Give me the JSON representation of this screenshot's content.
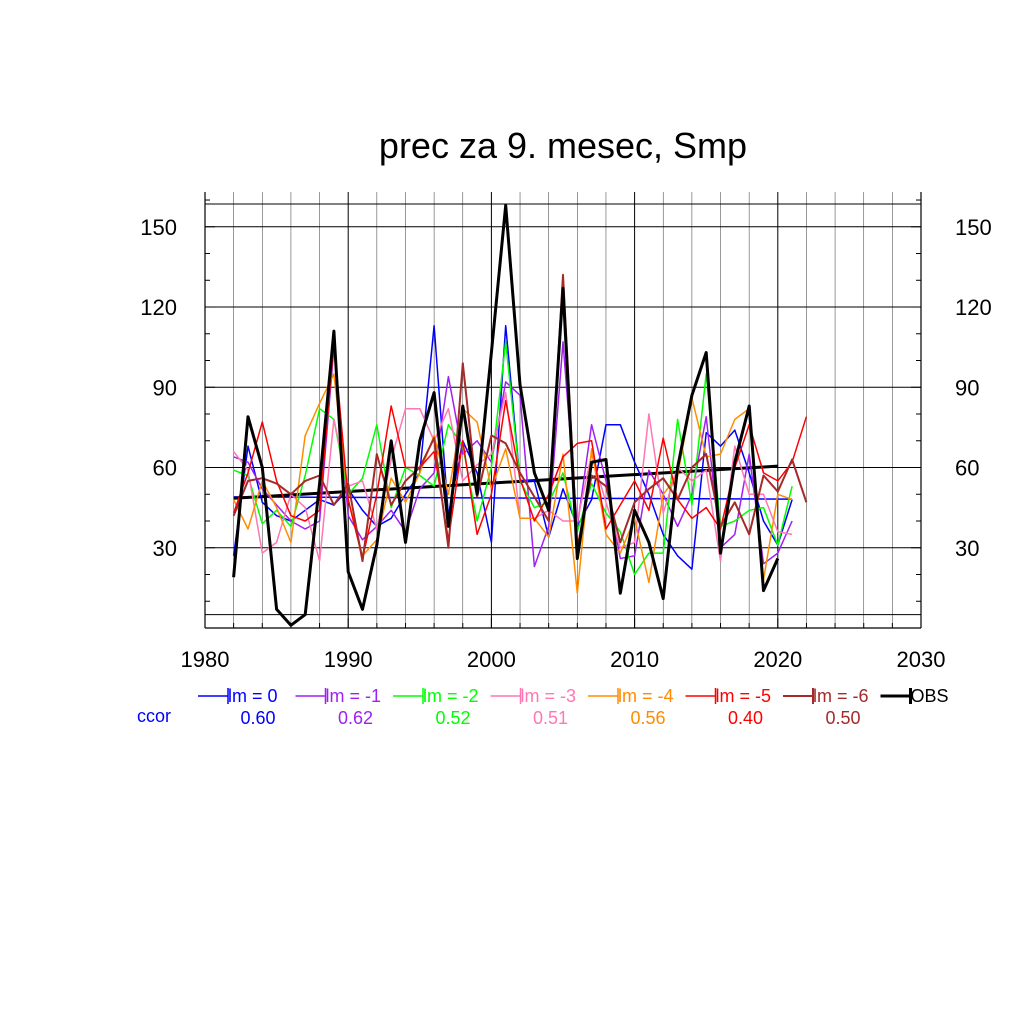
{
  "chart_data": {
    "type": "line",
    "title": "prec za 9. mesec, Smp",
    "xlabel": "",
    "ylabel": "",
    "xlim": [
      1980,
      2030
    ],
    "ylim": [
      0,
      163
    ],
    "x_ticks": [
      1980,
      1990,
      2000,
      2010,
      2020,
      2030
    ],
    "x_tick_labels": [
      "1980",
      "1990",
      "2000",
      "2010",
      "2020",
      "2030"
    ],
    "y_ticks": [
      30,
      60,
      90,
      120,
      150
    ],
    "y_tick_labels": [
      "30",
      "60",
      "90",
      "120",
      "150"
    ],
    "grid": true,
    "legend_position": "bottom",
    "ccor_label": "ccor",
    "years": [
      1982,
      1983,
      1984,
      1985,
      1986,
      1987,
      1988,
      1989,
      1990,
      1991,
      1992,
      1993,
      1994,
      1995,
      1996,
      1997,
      1998,
      1999,
      2000,
      2001,
      2002,
      2003,
      2004,
      2005,
      2006,
      2007,
      2008,
      2009,
      2010,
      2011,
      2012,
      2013,
      2014,
      2015,
      2016,
      2017,
      2018,
      2019,
      2020,
      2021,
      2022
    ],
    "series": [
      {
        "name": "lm = 0",
        "ccor": "0.60",
        "color": "#0000ff",
        "width": 1.5,
        "values": [
          27,
          68,
          47,
          42,
          40,
          44,
          48,
          46,
          52,
          44,
          38,
          41,
          50,
          58,
          113,
          42,
          70,
          58,
          32,
          113,
          55,
          55,
          34,
          52,
          38,
          48,
          76,
          76,
          62,
          50,
          35,
          27,
          22,
          73,
          68,
          74,
          58,
          40,
          31,
          48,
          null
        ]
      },
      {
        "name": "lm = -1",
        "ccor": "0.62",
        "color": "#a020f0",
        "width": 1.5,
        "values": [
          64,
          62,
          52,
          46,
          40,
          37,
          40,
          105,
          42,
          33,
          38,
          44,
          36,
          52,
          58,
          94,
          65,
          70,
          62,
          92,
          87,
          23,
          38,
          107,
          38,
          76,
          55,
          26,
          27,
          59,
          50,
          38,
          50,
          79,
          30,
          35,
          65,
          24,
          28,
          40,
          null
        ]
      },
      {
        "name": "lm = -2",
        "ccor": "0.52",
        "color": "#00ff00",
        "width": 1.5,
        "values": [
          59,
          57,
          39,
          44,
          38,
          57,
          82,
          78,
          50,
          56,
          76,
          45,
          60,
          57,
          53,
          76,
          68,
          40,
          60,
          107,
          55,
          45,
          47,
          58,
          36,
          54,
          43,
          36,
          20,
          28,
          28,
          78,
          46,
          95,
          38,
          40,
          44,
          45,
          31,
          53,
          null
        ]
      },
      {
        "name": "lm = -3",
        "ccor": "0.51",
        "color": "#ff77b4",
        "width": 1.5,
        "values": [
          66,
          59,
          28,
          32,
          50,
          45,
          25,
          78,
          53,
          55,
          37,
          63,
          82,
          82,
          70,
          82,
          55,
          61,
          65,
          88,
          41,
          41,
          44,
          40,
          40,
          65,
          47,
          30,
          32,
          80,
          43,
          60,
          55,
          59,
          25,
          68,
          50,
          50,
          36,
          35,
          null
        ]
      },
      {
        "name": "lm = -4",
        "ccor": "0.56",
        "color": "#ff8c00",
        "width": 1.5,
        "values": [
          48,
          37,
          55,
          45,
          32,
          72,
          84,
          95,
          48,
          27,
          33,
          56,
          47,
          58,
          72,
          50,
          82,
          77,
          52,
          67,
          41,
          41,
          34,
          65,
          13,
          67,
          35,
          28,
          41,
          17,
          50,
          57,
          86,
          64,
          65,
          78,
          82,
          18,
          50,
          48,
          null
        ]
      },
      {
        "name": "lm = -5",
        "ccor": "0.40",
        "color": "#ff0000",
        "width": 1.5,
        "values": [
          43,
          58,
          77,
          55,
          42,
          40,
          44,
          107,
          48,
          26,
          50,
          83,
          60,
          60,
          66,
          33,
          70,
          35,
          50,
          85,
          56,
          40,
          50,
          64,
          69,
          70,
          37,
          46,
          55,
          44,
          71,
          48,
          41,
          45,
          37,
          60,
          76,
          58,
          55,
          62,
          79
        ]
      },
      {
        "name": "lm = -6",
        "ccor": "0.50",
        "color": "#a52a2a",
        "width": 2,
        "values": [
          42,
          55,
          56,
          54,
          50,
          55,
          57,
          46,
          54,
          25,
          65,
          46,
          55,
          60,
          71,
          30,
          99,
          49,
          72,
          69,
          58,
          49,
          40,
          132,
          30,
          57,
          53,
          32,
          47,
          52,
          56,
          48,
          60,
          65,
          38,
          47,
          35,
          57,
          51,
          63,
          47
        ]
      },
      {
        "name": "OBS",
        "ccor": "",
        "color": "#000000",
        "width": 3,
        "values": [
          19,
          79,
          60,
          7,
          1,
          5,
          54,
          111,
          21,
          7,
          31,
          70,
          32,
          70,
          88,
          38,
          83,
          50,
          103,
          158,
          91,
          58,
          44,
          127,
          26,
          62,
          63,
          13,
          44,
          32,
          11,
          60,
          87,
          103,
          28,
          62,
          83,
          14,
          26,
          null,
          null
        ]
      }
    ],
    "trend_lines": [
      {
        "name": "lm = 0 trend",
        "color": "#0000ff",
        "x": [
          1982,
          2021
        ],
        "y": [
          49.0,
          48.2
        ]
      },
      {
        "name": "OBS trend",
        "color": "#000000",
        "x": [
          1982,
          2020
        ],
        "y": [
          48.5,
          60.5
        ]
      }
    ]
  }
}
